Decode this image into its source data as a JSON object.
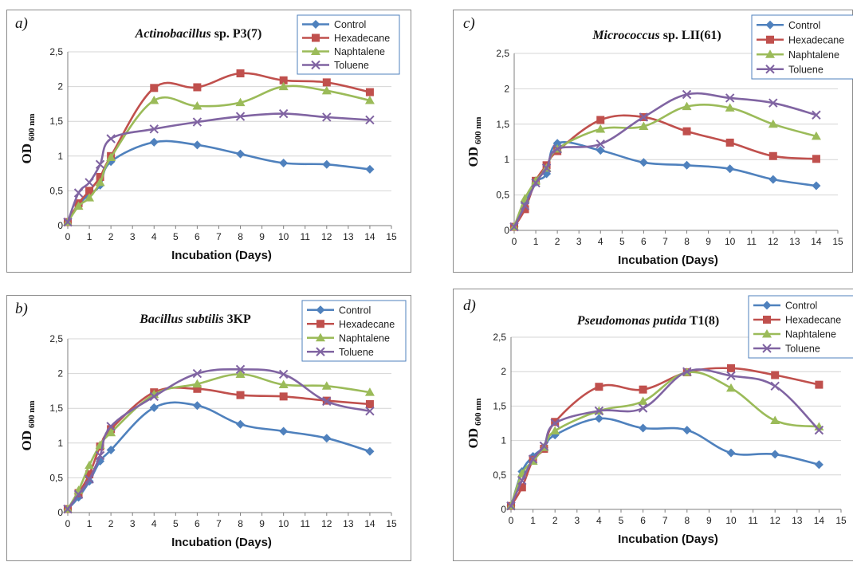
{
  "series_styles": [
    {
      "key": "control",
      "color": "#4F81BD",
      "marker": "diamond"
    },
    {
      "key": "hexadecane",
      "color": "#C0504D",
      "marker": "square"
    },
    {
      "key": "naphtalene",
      "color": "#9BBB59",
      "marker": "triangle"
    },
    {
      "key": "toluene",
      "color": "#8064A2",
      "marker": "x"
    }
  ],
  "chart_data": [
    {
      "panel": "a",
      "letter": "a)",
      "type": "line",
      "title_italic": "Actinobacillus",
      "title_rest": " sp. P3(7)",
      "xlabel": "Incubation (Days)",
      "ylabel": "OD",
      "ylabel_sub": "600 nm",
      "xlim": [
        0,
        15
      ],
      "ylim": [
        0,
        2.5
      ],
      "xticks": [
        "0",
        "1",
        "2",
        "3",
        "4",
        "5",
        "6",
        "7",
        "8",
        "9",
        "10",
        "11",
        "12",
        "13",
        "14",
        "15"
      ],
      "yticks": [
        "0",
        "0,5",
        "1",
        "1,5",
        "2",
        "2,5"
      ],
      "x": [
        0,
        0.5,
        1,
        1.5,
        2,
        4,
        6,
        8,
        10,
        12,
        14
      ],
      "series": [
        {
          "name": "Control",
          "values": [
            0.05,
            0.3,
            0.45,
            0.58,
            0.92,
            1.2,
            1.16,
            1.03,
            0.9,
            0.88,
            0.81
          ]
        },
        {
          "name": "Hexadecane",
          "values": [
            0.05,
            0.32,
            0.5,
            0.7,
            1.0,
            1.98,
            1.99,
            2.19,
            2.09,
            2.06,
            1.92
          ]
        },
        {
          "name": "Naphtalene",
          "values": [
            0.05,
            0.28,
            0.4,
            0.62,
            0.98,
            1.8,
            1.72,
            1.77,
            2.0,
            1.94,
            1.8
          ]
        },
        {
          "name": "Toluene",
          "values": [
            0.05,
            0.47,
            0.62,
            0.88,
            1.25,
            1.39,
            1.49,
            1.57,
            1.61,
            1.56,
            1.52
          ]
        }
      ],
      "legend_position": "top-right",
      "grid": true
    },
    {
      "panel": "c",
      "letter": "c)",
      "type": "line",
      "title_italic": "Micrococcus",
      "title_rest": " sp. LII(61)",
      "xlabel": "Incubation (Days)",
      "ylabel": "OD",
      "ylabel_sub": "600 nm",
      "xlim": [
        0,
        15
      ],
      "ylim": [
        0,
        2.5
      ],
      "xticks": [
        "0",
        "1",
        "2",
        "3",
        "4",
        "5",
        "6",
        "7",
        "8",
        "9",
        "10",
        "11",
        "12",
        "13",
        "14",
        "15"
      ],
      "yticks": [
        "0",
        "0,5",
        "1",
        "1,5",
        "2",
        "2,5"
      ],
      "x": [
        0,
        0.5,
        1,
        1.5,
        2,
        4,
        6,
        8,
        10,
        12,
        14
      ],
      "series": [
        {
          "name": "Control",
          "values": [
            0.05,
            0.38,
            0.68,
            0.8,
            1.23,
            1.13,
            0.96,
            0.92,
            0.87,
            0.72,
            0.63
          ]
        },
        {
          "name": "Hexadecane",
          "values": [
            0.05,
            0.3,
            0.7,
            0.92,
            1.12,
            1.56,
            1.6,
            1.4,
            1.24,
            1.05,
            1.01
          ]
        },
        {
          "name": "Naphtalene",
          "values": [
            0.05,
            0.45,
            0.7,
            0.88,
            1.15,
            1.43,
            1.47,
            1.75,
            1.73,
            1.5,
            1.33
          ]
        },
        {
          "name": "Toluene",
          "values": [
            0.05,
            0.35,
            0.67,
            0.88,
            1.15,
            1.22,
            1.6,
            1.92,
            1.87,
            1.8,
            1.63
          ]
        }
      ],
      "legend_position": "top-right",
      "grid": true
    },
    {
      "panel": "b",
      "letter": "b)",
      "type": "line",
      "title_italic": "Bacillus subtilis",
      "title_rest": " 3KP",
      "xlabel": "Incubation (Days)",
      "ylabel": "OD",
      "ylabel_sub": "600 nm",
      "xlim": [
        0,
        15
      ],
      "ylim": [
        0,
        2.5
      ],
      "xticks": [
        "0",
        "1",
        "2",
        "3",
        "4",
        "5",
        "6",
        "7",
        "8",
        "9",
        "10",
        "11",
        "12",
        "13",
        "14",
        "15"
      ],
      "yticks": [
        "0",
        "0,5",
        "1",
        "1,5",
        "2",
        "2,5"
      ],
      "x": [
        0,
        0.5,
        1,
        1.5,
        2,
        4,
        6,
        8,
        10,
        12,
        14
      ],
      "series": [
        {
          "name": "Control",
          "values": [
            0.05,
            0.22,
            0.45,
            0.74,
            0.9,
            1.51,
            1.54,
            1.27,
            1.17,
            1.07,
            0.88
          ]
        },
        {
          "name": "Hexadecane",
          "values": [
            0.05,
            0.28,
            0.55,
            0.95,
            1.2,
            1.73,
            1.78,
            1.69,
            1.67,
            1.61,
            1.56
          ]
        },
        {
          "name": "Naphtalene",
          "values": [
            0.05,
            0.32,
            0.68,
            0.97,
            1.15,
            1.7,
            1.85,
            1.99,
            1.84,
            1.82,
            1.73
          ]
        },
        {
          "name": "Toluene",
          "values": [
            0.05,
            0.26,
            0.48,
            0.82,
            1.24,
            1.67,
            2.0,
            2.06,
            1.99,
            1.6,
            1.46
          ]
        }
      ],
      "legend_position": "top-right",
      "grid": true
    },
    {
      "panel": "d",
      "letter": "d)",
      "type": "line",
      "title_italic": "Pseudomonas putida",
      "title_rest": " T1(8)",
      "xlabel": "Incubation (Days)",
      "ylabel": "OD",
      "ylabel_sub": "600 nm",
      "xlim": [
        0,
        15
      ],
      "ylim": [
        0,
        2.5
      ],
      "xticks": [
        "0",
        "1",
        "2",
        "3",
        "4",
        "5",
        "6",
        "7",
        "8",
        "9",
        "10",
        "11",
        "12",
        "13",
        "14",
        "15"
      ],
      "yticks": [
        "0",
        "0,5",
        "1",
        "1,5",
        "2",
        "2,5"
      ],
      "x": [
        0,
        0.5,
        1,
        1.5,
        2,
        4,
        6,
        8,
        10,
        12,
        14
      ],
      "series": [
        {
          "name": "Control",
          "values": [
            0.05,
            0.55,
            0.77,
            0.9,
            1.08,
            1.32,
            1.18,
            1.15,
            0.82,
            0.8,
            0.65
          ]
        },
        {
          "name": "Hexadecane",
          "values": [
            0.05,
            0.32,
            0.72,
            0.88,
            1.27,
            1.78,
            1.74,
            1.99,
            2.05,
            1.95,
            1.81
          ]
        },
        {
          "name": "Naphtalene",
          "values": [
            0.05,
            0.52,
            0.7,
            0.9,
            1.14,
            1.43,
            1.57,
            1.99,
            1.76,
            1.29,
            1.2
          ]
        },
        {
          "name": "Toluene",
          "values": [
            0.05,
            0.42,
            0.73,
            0.92,
            1.25,
            1.43,
            1.47,
            2.0,
            1.94,
            1.79,
            1.15
          ]
        }
      ],
      "legend_position": "top-right",
      "grid": true
    }
  ]
}
